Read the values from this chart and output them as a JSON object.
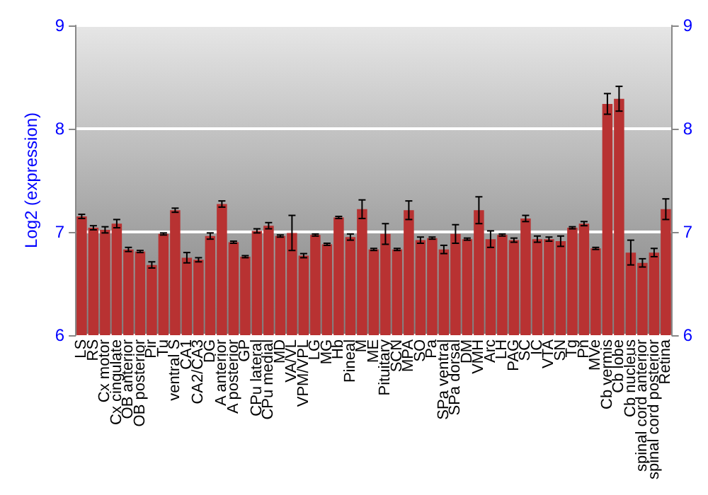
{
  "chart_data": {
    "type": "bar",
    "ylabel": "Log2 (expression)",
    "categories": [
      "LS",
      "RS",
      "Cx motor",
      "Cx cingulate",
      "OB anterior",
      "OB posterior",
      "Pir",
      "Tu",
      "ventral S",
      "CA1",
      "CA2/CA3",
      "DG",
      "A anterior",
      "A posterior",
      "GP",
      "CPu lateral",
      "CPu medial",
      "MD",
      "VA/VL",
      "VPM/VPL",
      "LG",
      "MG",
      "Hb",
      "Pineal",
      "M",
      "ME",
      "Pituitary",
      "SCN",
      "MPA",
      "SO",
      "Pa",
      "SPa ventral",
      "SPa dorsal",
      "DM",
      "VMH",
      "Arc",
      "LH",
      "PAG",
      "SC",
      "IC",
      "VTA",
      "SN",
      "Tg",
      "Pn",
      "MVe",
      "Cb vermis",
      "Cb lobe",
      "Cb nucleus",
      "spinal cord anterior",
      "spinal cord posterior",
      "Retina"
    ],
    "values": [
      7.15,
      7.04,
      7.02,
      7.08,
      6.83,
      6.81,
      6.68,
      6.98,
      7.21,
      6.75,
      6.73,
      6.96,
      7.27,
      6.9,
      6.76,
      7.01,
      7.06,
      6.96,
      6.99,
      6.77,
      6.97,
      6.88,
      7.14,
      6.95,
      7.22,
      6.83,
      6.98,
      6.83,
      7.21,
      6.92,
      6.94,
      6.83,
      6.98,
      6.93,
      7.21,
      6.93,
      6.97,
      6.92,
      7.13,
      6.93,
      6.93,
      6.91,
      7.04,
      7.08,
      6.84,
      8.24,
      8.29,
      6.8,
      6.7,
      6.8,
      7.22
    ],
    "errors": [
      0.02,
      0.02,
      0.03,
      0.04,
      0.02,
      0.01,
      0.03,
      0.01,
      0.02,
      0.05,
      0.02,
      0.03,
      0.03,
      0.01,
      0.01,
      0.02,
      0.03,
      0.01,
      0.17,
      0.02,
      0.01,
      0.01,
      0.01,
      0.03,
      0.09,
      0.01,
      0.1,
      0.01,
      0.09,
      0.03,
      0.01,
      0.04,
      0.09,
      0.01,
      0.13,
      0.08,
      0.01,
      0.02,
      0.03,
      0.03,
      0.02,
      0.05,
      0.01,
      0.02,
      0.01,
      0.1,
      0.12,
      0.12,
      0.04,
      0.04,
      0.1
    ],
    "color": "#b83232",
    "ylim": [
      6,
      9
    ],
    "yticks": [
      6,
      7,
      8,
      9
    ],
    "y2lim": [
      6,
      9
    ],
    "y2ticks": [
      6,
      7,
      8,
      9
    ],
    "grid": "y"
  }
}
